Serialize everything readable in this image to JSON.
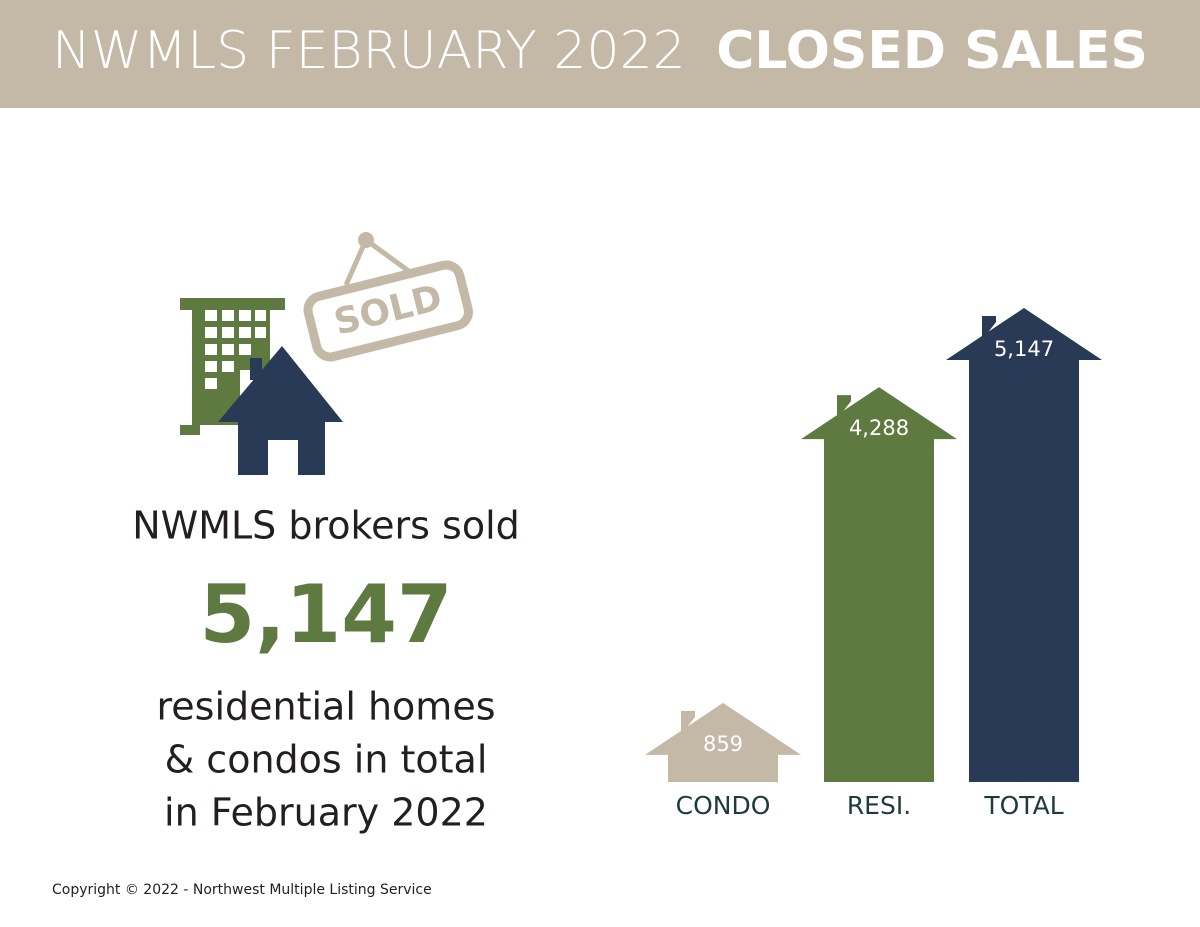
{
  "header": {
    "title_light": "NWMLS FEBRUARY 2022",
    "title_bold": "CLOSED SALES"
  },
  "icon": {
    "sign": "SOLD"
  },
  "summary": {
    "intro": "NWMLS brokers sold",
    "count": "5,147",
    "lines": [
      "residential homes",
      "& condos in total",
      "in February 2022"
    ]
  },
  "footer": {
    "copyright": "Copyright © 2022 - Northwest Multiple Listing Service"
  },
  "chart_data": {
    "type": "bar",
    "categories": [
      "CONDO",
      "RESI.",
      "TOTAL"
    ],
    "values": [
      859,
      4288,
      5147
    ],
    "value_labels": [
      "859",
      "4,288",
      "5,147"
    ],
    "colors": [
      "#c4b8a6",
      "#5f7a41",
      "#283a55"
    ]
  }
}
